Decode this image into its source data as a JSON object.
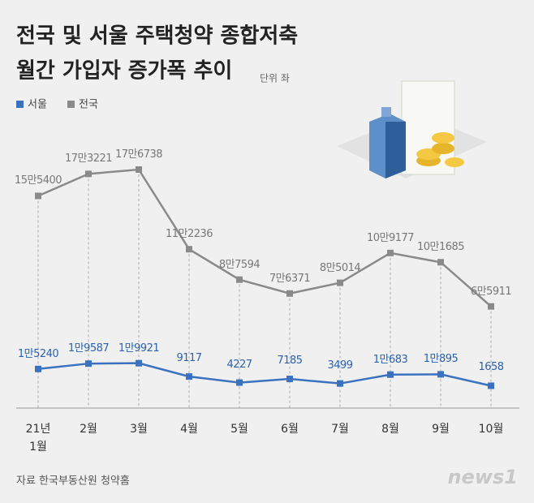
{
  "chart_data": {
    "type": "line",
    "title": [
      "전국 및 서울 주택청약 종합저축",
      "월간 가입자 증가폭 추이"
    ],
    "unit": "단위 좌",
    "categories": [
      "21년\n1월",
      "2월",
      "3월",
      "4월",
      "5월",
      "6월",
      "7월",
      "8월",
      "9월",
      "10월"
    ],
    "series": [
      {
        "name": "서울",
        "color": "#3b72bf",
        "label_color": "#2c62ab",
        "values": [
          15240,
          19587,
          19921,
          9117,
          4227,
          7185,
          3499,
          10683,
          10895,
          1658
        ],
        "value_labels": [
          "1만5240",
          "1만9587",
          "1만9921",
          "9117",
          "4227",
          "7185",
          "3499",
          "1만683",
          "1만895",
          "1658"
        ]
      },
      {
        "name": "전국",
        "color": "#8a8a8a",
        "label_color": "#777777",
        "values": [
          155400,
          173221,
          176738,
          112236,
          87594,
          76371,
          85014,
          109177,
          101685,
          65911
        ],
        "value_labels": [
          "15만5400",
          "17만3221",
          "17만6738",
          "11만2236",
          "8만7594",
          "7만6371",
          "8만5014",
          "10만9177",
          "10만1685",
          "6만5911"
        ]
      }
    ],
    "source": "자료 한국부동산원 청약홈",
    "watermark": "news1"
  }
}
